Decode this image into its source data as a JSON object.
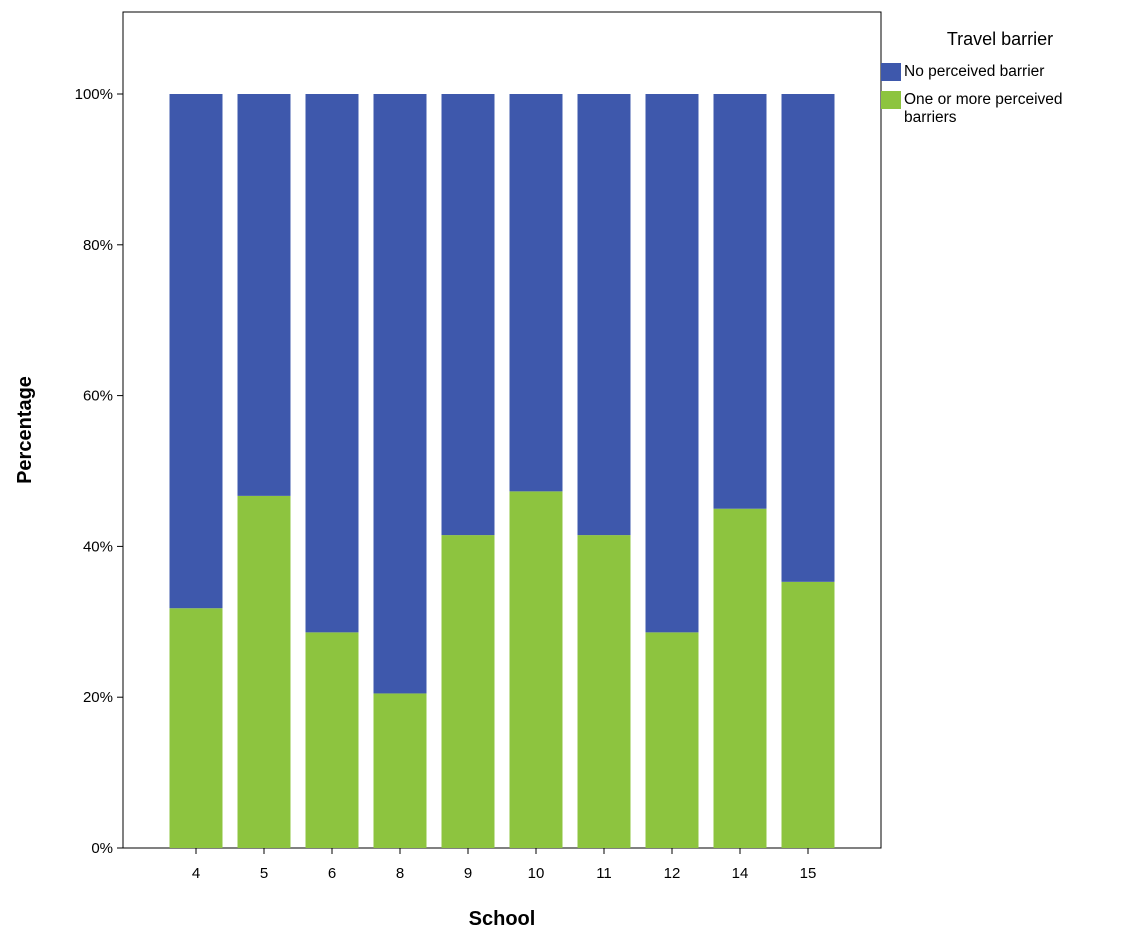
{
  "chart_data": {
    "type": "bar",
    "stacked": true,
    "categories": [
      "4",
      "5",
      "6",
      "8",
      "9",
      "10",
      "11",
      "12",
      "14",
      "15"
    ],
    "series": [
      {
        "name": "One or more perceived barriers",
        "color": "#8DC43F",
        "values": [
          31.8,
          46.7,
          28.6,
          20.5,
          41.5,
          47.3,
          41.5,
          28.6,
          45.0,
          35.3
        ]
      },
      {
        "name": "No perceived barrier",
        "color": "#3E58AC",
        "values": [
          68.2,
          53.3,
          71.4,
          79.5,
          58.5,
          52.7,
          58.5,
          71.4,
          55.0,
          64.7
        ]
      }
    ],
    "xlabel": "School",
    "ylabel": "Percentage",
    "ylim": [
      0,
      100
    ],
    "yticks": [
      0,
      20,
      40,
      60,
      80,
      100
    ],
    "ytick_labels": [
      "0%",
      "20%",
      "40%",
      "60%",
      "80%",
      "100%"
    ],
    "grid": false,
    "legend": {
      "title": "Travel barrier",
      "placement": "right",
      "entries": [
        {
          "label_lines": [
            "No perceived barrier"
          ],
          "color": "#3E58AC"
        },
        {
          "label_lines": [
            "One or more perceived",
            "barriers"
          ],
          "color": "#8DC43F"
        }
      ]
    }
  }
}
